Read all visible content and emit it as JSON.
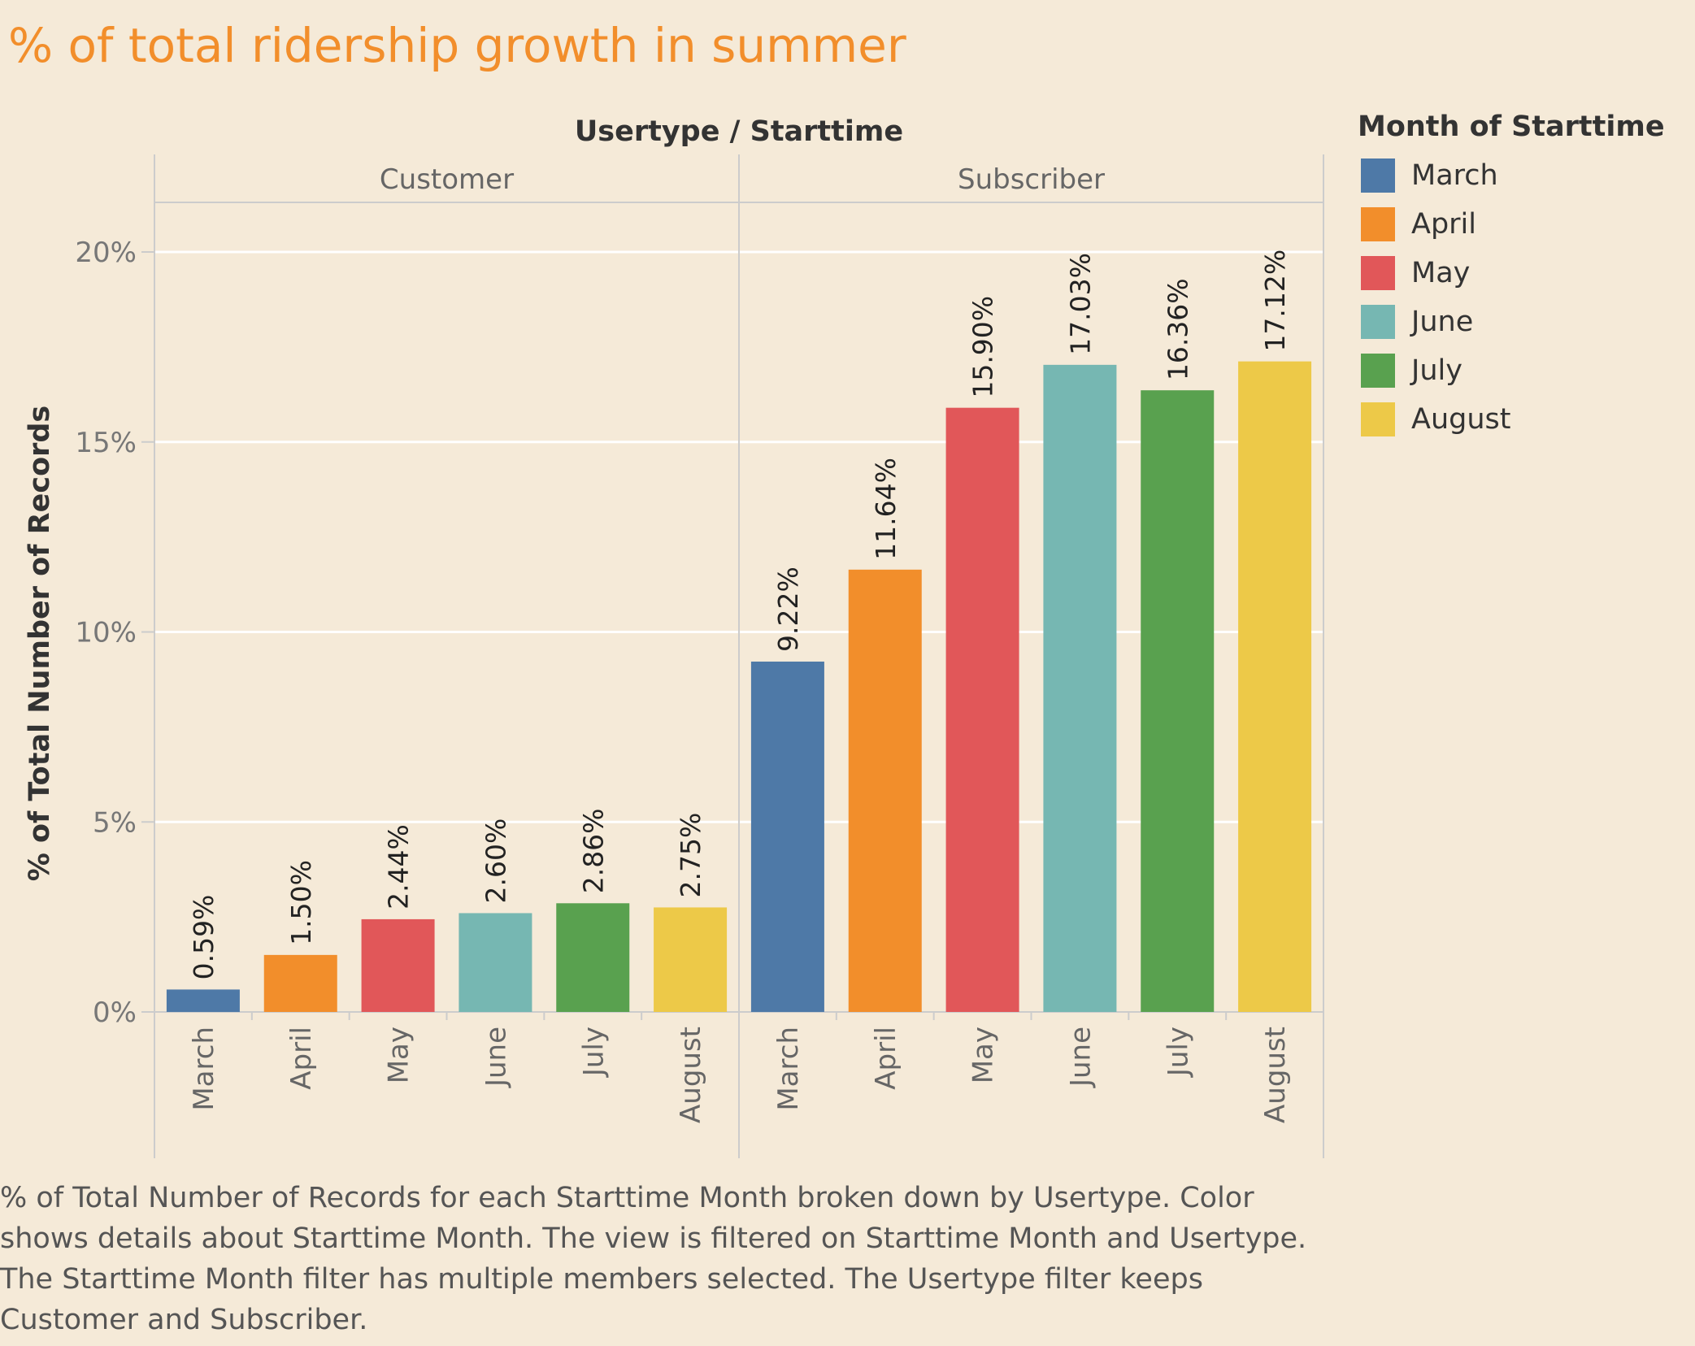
{
  "title": "% of total ridership growth in summer",
  "caption": "% of Total Number of Records for each Starttime Month broken down by Usertype.  Color shows details about Starttime Month. The view is filtered on Starttime Month and Usertype. The Starttime Month filter has multiple members selected. The Usertype filter keeps Customer and Subscriber.",
  "chart_data": {
    "type": "bar",
    "title": "% of total ridership growth in summer",
    "column_header": "Usertype / Starttime",
    "ylabel": "% of Total Number of Records",
    "ylim": [
      0,
      22
    ],
    "yticks": [
      0,
      5,
      10,
      15,
      20
    ],
    "ytick_labels": [
      "0%",
      "5%",
      "10%",
      "15%",
      "20%"
    ],
    "grid": true,
    "categories": [
      "March",
      "April",
      "May",
      "June",
      "July",
      "August"
    ],
    "panels": [
      {
        "name": "Customer",
        "values": [
          0.59,
          1.5,
          2.44,
          2.6,
          2.86,
          2.75
        ],
        "labels": [
          "0.59%",
          "1.50%",
          "2.44%",
          "2.60%",
          "2.86%",
          "2.75%"
        ]
      },
      {
        "name": "Subscriber",
        "values": [
          9.22,
          11.64,
          15.9,
          17.03,
          16.36,
          17.12
        ],
        "labels": [
          "9.22%",
          "11.64%",
          "15.90%",
          "17.03%",
          "16.36%",
          "17.12%"
        ]
      }
    ],
    "legend": {
      "title": "Month of Starttime",
      "position": "right",
      "items": [
        {
          "label": "March",
          "color": "#4e79a7"
        },
        {
          "label": "April",
          "color": "#f28e2b"
        },
        {
          "label": "May",
          "color": "#e15759"
        },
        {
          "label": "June",
          "color": "#76b7b2"
        },
        {
          "label": "July",
          "color": "#59a14f"
        },
        {
          "label": "August",
          "color": "#edc948"
        }
      ]
    }
  }
}
